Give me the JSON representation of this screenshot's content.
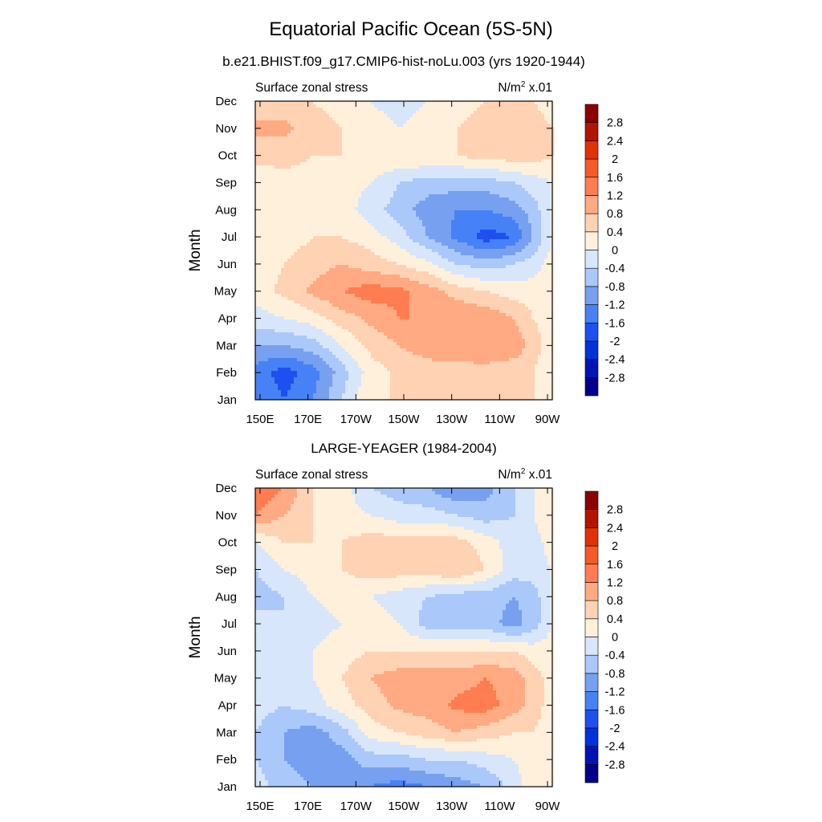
{
  "figure": {
    "title": "Equatorial Pacific Ocean (5S-5N)"
  },
  "colorbar": {
    "levels": [
      "-2.8",
      "-2.4",
      "-2",
      "-1.6",
      "-1.2",
      "-0.8",
      "-0.4",
      "0",
      "0.4",
      "0.8",
      "1.2",
      "1.6",
      "2",
      "2.4",
      "2.8"
    ],
    "colors": [
      "#00008c",
      "#0014b4",
      "#0032dc",
      "#1e50f0",
      "#4682f5",
      "#78a0f0",
      "#aac8fa",
      "#d7e6fa",
      "#fff0dc",
      "#ffd2b4",
      "#ffaa82",
      "#ff7d50",
      "#f55a28",
      "#e13205",
      "#b41400",
      "#8c0000"
    ]
  },
  "chart_data": [
    {
      "type": "heatmap",
      "title": "b.e21.BHIST.f09_g17.CMIP6-hist-noLu.003 (yrs 1920-1944)",
      "left_string": "Surface zonal stress",
      "right_string": "N/m",
      "right_string_sup": "2",
      "right_string_suffix": " x.01",
      "xlabel": "",
      "ylabel": "Month",
      "x_ticks": [
        "150E",
        "170E",
        "170W",
        "150W",
        "130W",
        "110W",
        "90W"
      ],
      "x_tick_values": [
        150,
        170,
        190,
        210,
        230,
        250,
        270
      ],
      "y_ticks": [
        "Jan",
        "Feb",
        "Mar",
        "Apr",
        "May",
        "Jun",
        "Jul",
        "Aug",
        "Sep",
        "Oct",
        "Nov",
        "Dec"
      ],
      "xlim": [
        148,
        272
      ],
      "ylim": [
        1,
        12
      ],
      "x": [
        148,
        160,
        172,
        184,
        196,
        208,
        220,
        232,
        244,
        256,
        264,
        272
      ],
      "y": [
        "Jan",
        "Feb",
        "Mar",
        "Apr",
        "May",
        "Jun",
        "Jul",
        "Aug",
        "Sep",
        "Oct",
        "Nov",
        "Dec"
      ],
      "z": [
        [
          -1.2,
          -1.6,
          -1.2,
          -0.4,
          0.4,
          0.4,
          0.4,
          0.4,
          0.4,
          0.4,
          0.4,
          0.0
        ],
        [
          -1.4,
          -1.8,
          -1.4,
          -0.6,
          0.2,
          0.5,
          0.6,
          0.6,
          0.6,
          0.5,
          0.4,
          0.0
        ],
        [
          -0.8,
          -0.8,
          -0.6,
          0.0,
          0.5,
          0.8,
          1.0,
          1.1,
          1.2,
          1.1,
          0.6,
          0.2
        ],
        [
          -0.2,
          0.0,
          0.2,
          0.6,
          0.9,
          1.2,
          1.2,
          1.2,
          1.1,
          0.8,
          0.4,
          0.2
        ],
        [
          0.2,
          0.5,
          0.9,
          1.2,
          1.4,
          1.3,
          1.0,
          0.6,
          0.4,
          0.2,
          0.2,
          0.2
        ],
        [
          0.2,
          0.4,
          0.6,
          0.8,
          0.6,
          0.4,
          0.1,
          -0.4,
          -0.6,
          -0.4,
          -0.2,
          0.2
        ],
        [
          0.2,
          0.2,
          0.4,
          0.4,
          0.2,
          -0.2,
          -0.8,
          -1.3,
          -1.8,
          -1.6,
          -0.8,
          0.0
        ],
        [
          0.0,
          0.2,
          0.2,
          0.2,
          -0.2,
          -0.6,
          -1.0,
          -1.2,
          -1.2,
          -1.0,
          -0.6,
          0.0
        ],
        [
          0.0,
          0.2,
          0.2,
          0.2,
          0.0,
          -0.4,
          -0.6,
          -0.6,
          -0.6,
          -0.4,
          -0.2,
          0.0
        ],
        [
          0.6,
          0.6,
          0.4,
          0.4,
          0.4,
          0.4,
          0.4,
          0.4,
          0.6,
          0.6,
          0.6,
          0.4
        ],
        [
          0.9,
          0.9,
          0.6,
          0.4,
          0.2,
          0.0,
          0.2,
          0.4,
          0.6,
          0.6,
          0.6,
          0.4
        ],
        [
          0.6,
          0.6,
          0.4,
          0.2,
          0.0,
          -0.2,
          0.0,
          0.2,
          0.4,
          0.4,
          0.4,
          0.2
        ]
      ]
    },
    {
      "type": "heatmap",
      "title": "LARGE-YEAGER (1984-2004)",
      "left_string": "Surface zonal stress",
      "right_string": "N/m",
      "right_string_sup": "2",
      "right_string_suffix": " x.01",
      "xlabel": "",
      "ylabel": "Month",
      "x_ticks": [
        "150E",
        "170E",
        "170W",
        "150W",
        "130W",
        "110W",
        "90W"
      ],
      "x_tick_values": [
        150,
        170,
        190,
        210,
        230,
        250,
        270
      ],
      "y_ticks": [
        "Jan",
        "Feb",
        "Mar",
        "Apr",
        "May",
        "Jun",
        "Jul",
        "Aug",
        "Sep",
        "Oct",
        "Nov",
        "Dec"
      ],
      "xlim": [
        148,
        272
      ],
      "ylim": [
        1,
        12
      ],
      "x": [
        148,
        160,
        172,
        184,
        196,
        208,
        220,
        232,
        244,
        256,
        264,
        272
      ],
      "y": [
        "Jan",
        "Feb",
        "Mar",
        "Apr",
        "May",
        "Jun",
        "Jul",
        "Aug",
        "Sep",
        "Oct",
        "Nov",
        "Dec"
      ],
      "z": [
        [
          -0.2,
          -0.6,
          -0.8,
          -0.8,
          -1.2,
          -1.4,
          -1.2,
          -1.0,
          -0.8,
          -0.2,
          0.2,
          0.2
        ],
        [
          -0.4,
          -0.8,
          -1.0,
          -1.0,
          -0.6,
          -0.6,
          -0.4,
          -0.4,
          -0.2,
          0.0,
          0.2,
          0.2
        ],
        [
          -0.4,
          -0.8,
          -1.0,
          -0.6,
          0.2,
          0.4,
          0.6,
          0.8,
          0.6,
          0.4,
          0.4,
          0.2
        ],
        [
          -0.2,
          -0.4,
          -0.2,
          0.2,
          0.6,
          0.9,
          1.0,
          1.3,
          1.4,
          1.0,
          0.6,
          0.2
        ],
        [
          0.0,
          -0.2,
          0.0,
          0.4,
          0.8,
          1.0,
          1.0,
          1.0,
          1.2,
          1.0,
          0.6,
          0.2
        ],
        [
          0.0,
          -0.2,
          0.0,
          0.2,
          0.4,
          0.4,
          0.4,
          0.4,
          0.4,
          0.4,
          0.2,
          0.2
        ],
        [
          -0.2,
          -0.4,
          -0.2,
          0.0,
          0.2,
          0.0,
          -0.6,
          -0.6,
          -0.6,
          -1.0,
          -0.6,
          0.0
        ],
        [
          -0.6,
          -0.4,
          0.0,
          0.2,
          0.0,
          -0.2,
          -0.4,
          -0.6,
          -0.6,
          -0.8,
          -0.6,
          0.0
        ],
        [
          -0.4,
          0.0,
          0.2,
          0.4,
          0.6,
          0.6,
          0.6,
          0.8,
          0.4,
          -0.2,
          -0.2,
          0.0
        ],
        [
          0.0,
          0.4,
          0.4,
          0.4,
          0.6,
          0.6,
          0.6,
          0.6,
          0.2,
          -0.2,
          -0.2,
          0.2
        ],
        [
          1.2,
          0.8,
          0.4,
          0.2,
          0.0,
          -0.2,
          -0.2,
          -0.4,
          -0.6,
          -0.4,
          0.0,
          0.4
        ],
        [
          1.6,
          1.2,
          0.4,
          0.2,
          -0.4,
          -0.6,
          -0.8,
          -1.2,
          -1.0,
          -0.4,
          0.0,
          0.2
        ]
      ]
    }
  ]
}
